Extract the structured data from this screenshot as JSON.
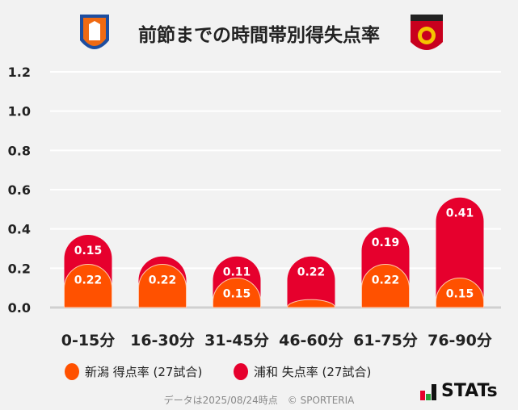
{
  "chart_data": {
    "type": "bar",
    "stacked": true,
    "title": "前節までの時間帯別得失点率",
    "categories": [
      "0-15分",
      "16-30分",
      "31-45分",
      "46-60分",
      "61-75分",
      "76-90分"
    ],
    "series": [
      {
        "name": "新潟 得点率 (27試合)",
        "color": "#ff5100",
        "values": [
          0.22,
          0.22,
          0.15,
          0.04,
          0.22,
          0.15
        ],
        "labels": [
          "0.22",
          "0.22",
          "0.15",
          "",
          "0.22",
          "0.15"
        ]
      },
      {
        "name": "浦和 失点率 (27試合)",
        "color": "#e6002d",
        "values": [
          0.15,
          0.04,
          0.11,
          0.22,
          0.19,
          0.41
        ],
        "labels": [
          "0.15",
          "",
          "0.11",
          "0.22",
          "0.19",
          "0.41"
        ]
      }
    ],
    "yticks": [
      "0.0",
      "0.2",
      "0.4",
      "0.6",
      "0.8",
      "1.0",
      "1.2"
    ],
    "ylim": [
      0,
      1.2
    ],
    "grid": true,
    "legend": "bottom"
  },
  "footer": "データは2025/08/24時点　© SPORTERIA",
  "brand": "STATs",
  "logos": {
    "left": "新潟 emblem",
    "right": "浦和 emblem"
  }
}
